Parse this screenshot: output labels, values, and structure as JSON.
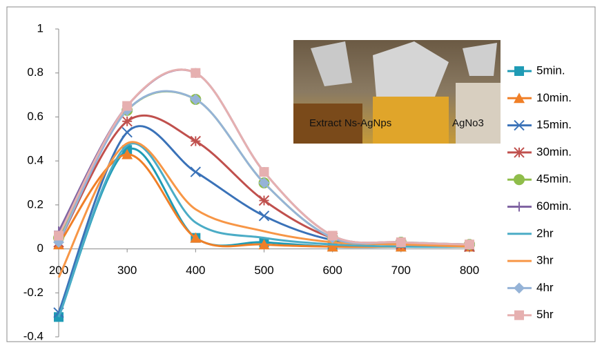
{
  "chart_data": {
    "type": "line",
    "smooth": true,
    "x": [
      200,
      300,
      400,
      500,
      600,
      700,
      800
    ],
    "xlim": [
      200,
      800
    ],
    "xticks": [
      200,
      300,
      400,
      500,
      600,
      700,
      800
    ],
    "ylim": [
      -0.4,
      1
    ],
    "yticks": [
      -0.4,
      -0.2,
      0,
      0.2,
      0.4,
      0.6,
      0.8,
      1
    ],
    "annotations": [
      "Extract Ns-AgNps",
      "AgNo3"
    ],
    "series": [
      {
        "name": "5min.",
        "color": "#1f9bb5",
        "marker": "square",
        "values": [
          -0.31,
          0.45,
          0.05,
          0.03,
          0.01,
          0.01,
          0.01
        ]
      },
      {
        "name": "10min.",
        "color": "#f07f27",
        "marker": "triangle",
        "values": [
          0.02,
          0.43,
          0.05,
          0.02,
          0.01,
          0.01,
          0.01
        ]
      },
      {
        "name": "15min.",
        "color": "#3a72b8",
        "marker": "x",
        "values": [
          -0.29,
          0.53,
          0.35,
          0.15,
          0.04,
          0.02,
          0.01
        ]
      },
      {
        "name": "30min.",
        "color": "#c0504d",
        "marker": "asterisk",
        "values": [
          0.03,
          0.58,
          0.49,
          0.22,
          0.05,
          0.02,
          0.01
        ]
      },
      {
        "name": "45min.",
        "color": "#8fbd4a",
        "marker": "circle",
        "values": [
          0.05,
          0.63,
          0.68,
          0.3,
          0.05,
          0.03,
          0.02
        ]
      },
      {
        "name": "60min.",
        "color": "#8064a2",
        "marker": "plus",
        "values": [
          0.08,
          0.65,
          0.8,
          0.35,
          0.06,
          0.03,
          0.02
        ]
      },
      {
        "name": "2hr",
        "color": "#4bacc6",
        "marker": "none",
        "values": [
          -0.31,
          0.47,
          0.12,
          0.05,
          0.02,
          0.01,
          0.01
        ]
      },
      {
        "name": "3hr",
        "color": "#f79646",
        "marker": "none",
        "values": [
          -0.13,
          0.48,
          0.18,
          0.08,
          0.03,
          0.02,
          0.01
        ]
      },
      {
        "name": "4hr",
        "color": "#95b3d7",
        "marker": "diamond",
        "values": [
          0.03,
          0.63,
          0.68,
          0.3,
          0.05,
          0.03,
          0.02
        ]
      },
      {
        "name": "5hr",
        "color": "#e6b0b0",
        "marker": "square",
        "values": [
          0.06,
          0.65,
          0.8,
          0.35,
          0.06,
          0.03,
          0.02
        ]
      }
    ]
  }
}
